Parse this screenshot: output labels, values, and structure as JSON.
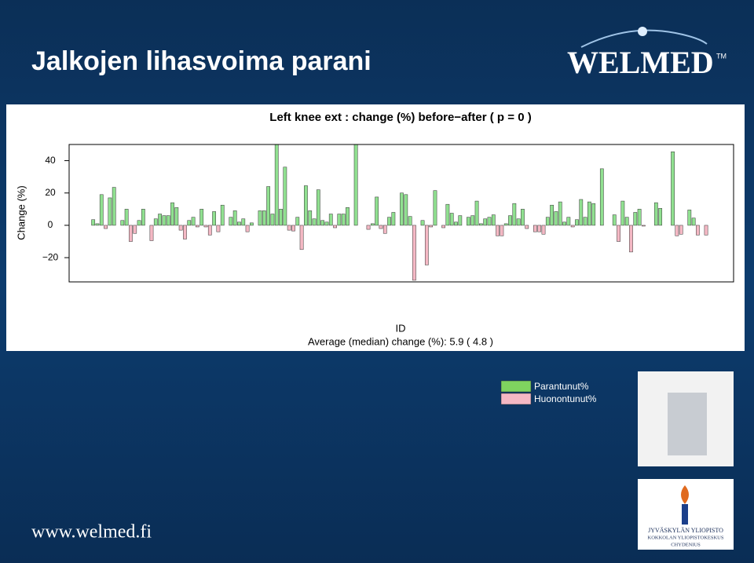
{
  "header": {
    "title": "Jalkojen lihasvoima parani",
    "logo": "WELMED",
    "logo_mark": "TM"
  },
  "chart_data": {
    "type": "bar",
    "title": "Left knee ext : change (%) before−after ( p =  0 )",
    "y_label": "Change (%)",
    "x_label": "ID",
    "subtitle": "Average (median) change (%): 5.9 ( 4.8 )",
    "ylim": [
      -35,
      50
    ],
    "yticks": [
      {
        "value": -20,
        "label": "−20"
      },
      0,
      20,
      40
    ],
    "positive_color": "#90e090",
    "negative_color": "#f4b8c4",
    "values": [
      3.5,
      1,
      19,
      -2,
      17,
      23.5,
      0,
      3,
      10,
      -10,
      -5,
      3,
      10,
      0,
      -9.5,
      4,
      7,
      6,
      6,
      14,
      11,
      -3,
      -8.5,
      3,
      5,
      -1,
      10,
      -1,
      -6,
      8.5,
      -4,
      12.5,
      0,
      5,
      9,
      2,
      4,
      -4,
      1.5,
      0,
      9,
      9,
      24,
      7,
      50,
      10,
      36,
      -3,
      -3.5,
      5,
      -15,
      24.5,
      9,
      4,
      22,
      3,
      2,
      7,
      -1.5,
      7,
      7,
      11,
      0,
      50,
      0,
      0,
      -2.5,
      1,
      17.5,
      -2,
      -5,
      5,
      8,
      0,
      20,
      19,
      5.5,
      -34,
      0,
      3,
      -24.5,
      -1,
      21.5,
      0,
      -1.5,
      13,
      7.5,
      2,
      6,
      0,
      5,
      6,
      15,
      1,
      4,
      5,
      6.5,
      -6.5,
      -6.5,
      1,
      6,
      13.5,
      4,
      10,
      -2,
      0,
      -4,
      -4,
      -5.5,
      5,
      12.5,
      8.5,
      14.5,
      2,
      5,
      -1,
      3.5,
      16,
      5,
      14.5,
      13.5,
      0,
      35,
      0,
      0,
      6.5,
      -10,
      15,
      5,
      -16.5,
      8,
      10,
      -0.5,
      0,
      0,
      14,
      10.5,
      0,
      0,
      45.5,
      -6.5,
      -5.5,
      0,
      9.5,
      4.5,
      -6,
      0,
      -6,
      0
    ]
  },
  "legend": [
    {
      "name": "Parantunut%",
      "color": "#7fd35f"
    },
    {
      "name": "Huonontunut%",
      "color": "#f4b8c4"
    }
  ],
  "affiliation": [
    "JYVÄSKYLÄN YLIOPISTO",
    "KOKKOLAN YLIOPISTOKESKUS",
    "CHYDENIUS"
  ],
  "footer": "www.welmed.fi"
}
